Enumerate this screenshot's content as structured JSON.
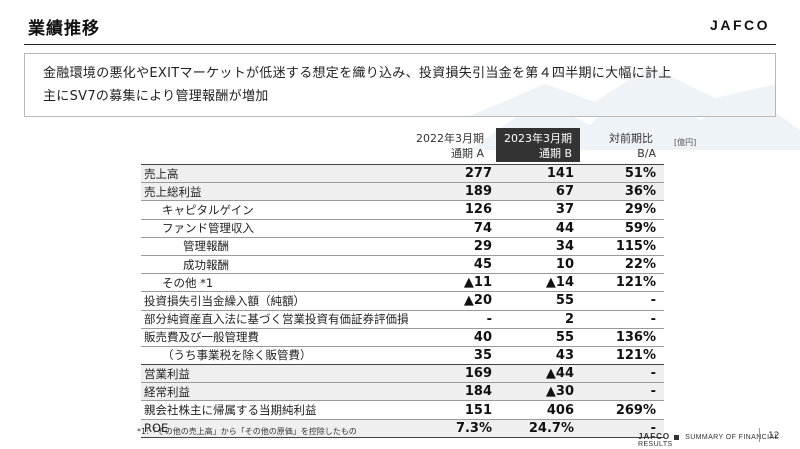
{
  "page": {
    "title": "業績推移",
    "brand": "JAFCO"
  },
  "message": {
    "line1": "金融環境の悪化やEXITマーケットが低迷する想定を織り込み、投資損失引当金を第４四半期に大幅に計上",
    "line2": "主にSV7の募集により管理報酬が増加"
  },
  "table": {
    "headers": [
      {
        "line1": "2022年3月期",
        "line2": "通期 A"
      },
      {
        "line1": "2023年3月期",
        "line2": "通期 B"
      },
      {
        "line1": "対前期比",
        "line2": "B/A"
      }
    ],
    "unit": "[億円]",
    "rows": [
      {
        "label": "売上高",
        "a": "277",
        "b": "141",
        "r": "51%"
      },
      {
        "label": "売上総利益",
        "a": "189",
        "b": "67",
        "r": "36%"
      },
      {
        "label": "キャピタルゲイン",
        "a": "126",
        "b": "37",
        "r": "29%"
      },
      {
        "label": "ファンド管理収入",
        "a": "74",
        "b": "44",
        "r": "59%"
      },
      {
        "label": "管理報酬",
        "a": "29",
        "b": "34",
        "r": "115%"
      },
      {
        "label": "成功報酬",
        "a": "45",
        "b": "10",
        "r": "22%"
      },
      {
        "label": "その他 *1",
        "a": "▲11",
        "b": "▲14",
        "r": "121%"
      },
      {
        "label": "投資損失引当金繰入額（純額）",
        "a": "▲20",
        "b": "55",
        "r": "-"
      },
      {
        "label": "部分純資産直入法に基づく営業投資有価証券評価損",
        "a": "-",
        "b": "2",
        "r": "-"
      },
      {
        "label": "販売費及び一般管理費",
        "a": "40",
        "b": "55",
        "r": "136%"
      },
      {
        "label": "（うち事業税を除く販管費）",
        "a": "35",
        "b": "43",
        "r": "121%"
      },
      {
        "label": "営業利益",
        "a": "169",
        "b": "▲44",
        "r": "-"
      },
      {
        "label": "経常利益",
        "a": "184",
        "b": "▲30",
        "r": "-"
      },
      {
        "label": "親会社株主に帰属する当期純利益",
        "a": "151",
        "b": "406",
        "r": "269%"
      },
      {
        "label": "ROE",
        "a": "7.3%",
        "b": "24.7%",
        "r": "-"
      }
    ]
  },
  "footnote": "*1:「その他の売上高」から「その他の原価」を控除したもの",
  "footer": {
    "brand": "JAFCO",
    "text": "SUMMARY OF FINANCIAL RESULTS",
    "page_number": "12"
  }
}
